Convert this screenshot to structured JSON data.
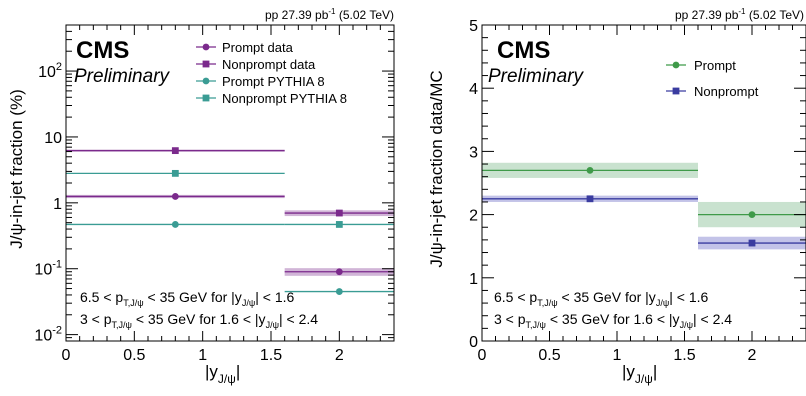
{
  "chart_data": [
    {
      "type": "scatter",
      "experiment": "CMS",
      "status": "Preliminary",
      "lumi": "pp 27.39 pb",
      "lumi_exp": "-1",
      "energy": "(5.02 TeV)",
      "ylabel": "J/ψ-in-jet fraction (%)",
      "yscale": "log",
      "ylim": [
        0.008,
        500
      ],
      "xlim": [
        0,
        2.4
      ],
      "xticks": [
        "0",
        "0.5",
        "1",
        "1.5",
        "2"
      ],
      "xlabel_main": "|y",
      "xlabel_sub": "J/ψ",
      "xlabel_end": "|",
      "yticks": [
        {
          "base": "10",
          "exp": "-2",
          "value": 0.01
        },
        {
          "base": "10",
          "exp": "-1",
          "value": 0.1
        },
        {
          "base": "1",
          "exp": "",
          "value": 1
        },
        {
          "base": "10",
          "exp": "",
          "value": 10
        },
        {
          "base": "10",
          "exp": "2",
          "value": 100
        }
      ],
      "bins": [
        [
          0,
          1.6
        ],
        [
          1.6,
          2.4
        ]
      ],
      "bin_centers": [
        0.8,
        2.0
      ],
      "series": [
        {
          "name": "Prompt data",
          "values": [
            1.25,
            0.09
          ],
          "err_band": [
            0.07,
            0.012
          ],
          "color": "#7b2a8c",
          "marker": "circle"
        },
        {
          "name": "Nonprompt data",
          "values": [
            6.2,
            0.7
          ],
          "err_band": [
            0.25,
            0.07
          ],
          "color": "#7b2a8c",
          "marker": "square"
        },
        {
          "name": "Prompt PYTHIA 8",
          "values": [
            0.47,
            0.045
          ],
          "color": "#3a9c94",
          "marker": "circle"
        },
        {
          "name": "Nonprompt PYTHIA 8",
          "values": [
            2.8,
            0.47
          ],
          "color": "#3a9c94",
          "marker": "square"
        }
      ],
      "annotations": [
        {
          "a": "6.5 < p",
          "sub": "T,J/ψ",
          "b": " < 35 GeV for |y",
          "sub2": "J/ψ",
          "c": "| < 1.6"
        },
        {
          "a": "3 < p",
          "sub": "T,J/ψ",
          "b": " < 35 GeV for 1.6 < |y",
          "sub2": "J/ψ",
          "c": "| < 2.4"
        }
      ]
    },
    {
      "type": "scatter",
      "experiment": "CMS",
      "status": "Preliminary",
      "lumi": "pp 27.39 pb",
      "lumi_exp": "-1",
      "energy": "(5.02 TeV)",
      "ylabel": "J/ψ-in-jet fraction data/MC",
      "yscale": "linear",
      "ylim": [
        0,
        5
      ],
      "xlim": [
        0,
        2.4
      ],
      "xticks": [
        "0",
        "0.5",
        "1",
        "1.5",
        "2"
      ],
      "xlabel_main": "|y",
      "xlabel_sub": "J/ψ",
      "xlabel_end": "|",
      "yticks": [
        {
          "base": "0",
          "value": 0
        },
        {
          "base": "1",
          "value": 1
        },
        {
          "base": "2",
          "value": 2
        },
        {
          "base": "3",
          "value": 3
        },
        {
          "base": "4",
          "value": 4
        },
        {
          "base": "5",
          "value": 5
        }
      ],
      "bins": [
        [
          0,
          1.6
        ],
        [
          1.6,
          2.4
        ]
      ],
      "bin_centers": [
        0.8,
        2.0
      ],
      "series": [
        {
          "name": "Prompt",
          "values": [
            2.7,
            2.0
          ],
          "err_band": [
            0.12,
            0.2
          ],
          "color": "#3f9a49",
          "band_color": "#c9e2cf",
          "marker": "circle"
        },
        {
          "name": "Nonprompt",
          "values": [
            2.25,
            1.55
          ],
          "err_band": [
            0.05,
            0.1
          ],
          "color": "#3a3ca0",
          "band_color": "#c3c3e8",
          "marker": "square"
        }
      ],
      "annotations": [
        {
          "a": "6.5 < p",
          "sub": "T,J/ψ",
          "b": " < 35 GeV for |y",
          "sub2": "J/ψ",
          "c": "| < 1.6"
        },
        {
          "a": "3 < p",
          "sub": "T,J/ψ",
          "b": " < 35 GeV for 1.6 < |y",
          "sub2": "J/ψ",
          "c": "| < 2.4"
        }
      ]
    }
  ]
}
